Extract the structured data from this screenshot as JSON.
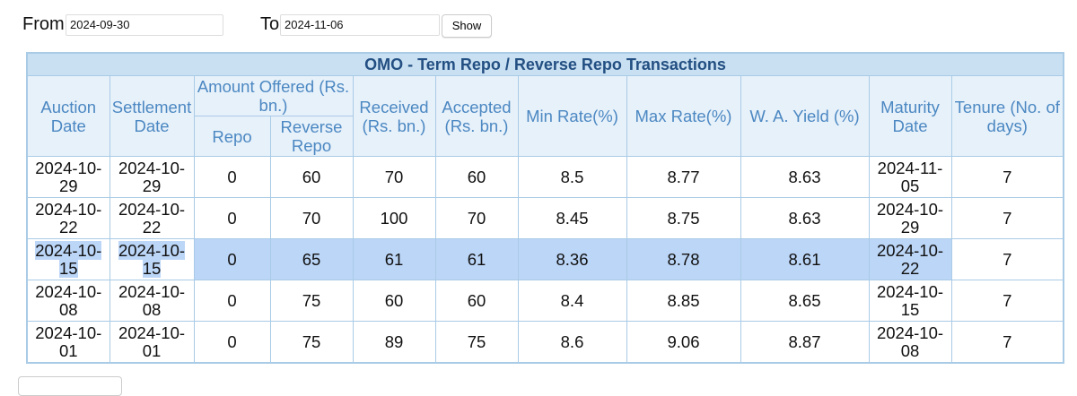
{
  "form": {
    "from_label": "From",
    "from_value": "2024-09-30",
    "to_label": "To",
    "to_value": "2024-11-06",
    "button": "Show"
  },
  "table": {
    "title": "OMO - Term Repo / Reverse Repo Transactions",
    "headers": {
      "auction_date": "Auction Date",
      "settlement_date": "Settlement Date",
      "amount_offered": "Amount Offered (Rs. bn.)",
      "repo": "Repo",
      "reverse_repo": "Reverse Repo",
      "received": "Received (Rs. bn.)",
      "accepted": "Accepted (Rs. bn.)",
      "min_rate": "Min Rate(%)",
      "max_rate": "Max Rate(%)",
      "wa_yield": "W. A. Yield (%)",
      "maturity_date": "Maturity Date",
      "tenure": "Tenure (No. of days)"
    },
    "rows": [
      [
        "2024-10-29",
        "2024-10-29",
        0,
        60,
        70,
        60,
        8.5,
        8.77,
        8.63,
        "2024-11-05",
        7
      ],
      [
        "2024-10-22",
        "2024-10-22",
        0,
        70,
        100,
        70,
        8.45,
        8.75,
        8.63,
        "2024-10-29",
        7
      ],
      [
        "2024-10-15",
        "2024-10-15",
        0,
        65,
        61,
        61,
        8.36,
        8.78,
        8.61,
        "2024-10-22",
        7
      ],
      [
        "2024-10-08",
        "2024-10-08",
        0,
        75,
        60,
        60,
        8.4,
        8.85,
        8.65,
        "2024-10-15",
        7
      ],
      [
        "2024-10-01",
        "2024-10-01",
        0,
        75,
        89,
        75,
        8.6,
        9.06,
        8.87,
        "2024-10-08",
        7
      ]
    ],
    "selected_row": 2
  }
}
